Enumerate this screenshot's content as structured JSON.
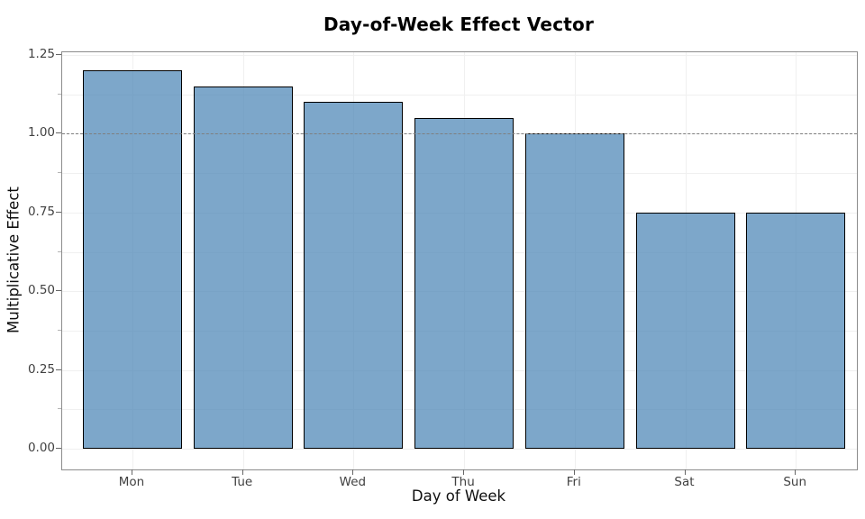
{
  "page": {
    "background": "#ffffff"
  },
  "chart_data": {
    "type": "bar",
    "title": "Day-of-Week Effect Vector",
    "xlabel": "Day of Week",
    "ylabel": "Multiplicative Effect",
    "categories": [
      "Mon",
      "Tue",
      "Wed",
      "Thu",
      "Fri",
      "Sat",
      "Sun"
    ],
    "values": [
      1.2,
      1.15,
      1.1,
      1.05,
      1.0,
      0.75,
      0.75
    ],
    "ylim": [
      0,
      1.25
    ],
    "y_tick_values": [
      0,
      0.25,
      0.5,
      0.75,
      1.0,
      1.25
    ],
    "y_tick_labels": [
      "0.00",
      "0.25",
      "0.50",
      "0.75",
      "1.00",
      "1.25"
    ],
    "y_minor_tick_values": [
      0.125,
      0.375,
      0.625,
      0.875,
      1.125
    ],
    "grid": true,
    "legend": null,
    "reference_line": {
      "y": 1.0,
      "style": "dashed",
      "color": "#7f7f7f"
    },
    "bar_fill": "rgba(70,130,180,0.7)",
    "bar_edge": "#000000"
  }
}
